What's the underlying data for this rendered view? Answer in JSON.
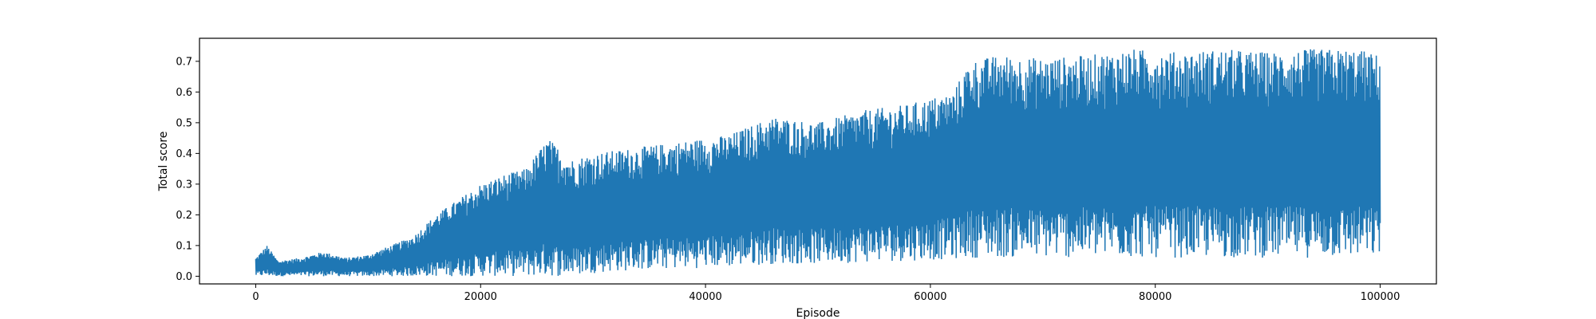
{
  "chart_data": {
    "type": "line",
    "title": "",
    "xlabel": "Episode",
    "ylabel": "Total score",
    "xlim": [
      -5000,
      105000
    ],
    "ylim": [
      -0.025,
      0.775
    ],
    "x_ticks": [
      0,
      20000,
      40000,
      60000,
      80000,
      100000
    ],
    "x_tick_labels": [
      "0",
      "20000",
      "40000",
      "60000",
      "80000",
      "100000"
    ],
    "y_ticks": [
      0.0,
      0.1,
      0.2,
      0.3,
      0.4,
      0.5,
      0.6,
      0.7
    ],
    "y_tick_labels": [
      "0.0",
      "0.1",
      "0.2",
      "0.3",
      "0.4",
      "0.5",
      "0.6",
      "0.7"
    ],
    "grid": false,
    "series": [
      {
        "color": "#1f77b4",
        "x_range": [
          0,
          100000
        ],
        "envelope_x": [
          0,
          1000,
          2000,
          4000,
          6000,
          8000,
          10000,
          12000,
          14000,
          16000,
          18000,
          20000,
          22000,
          24000,
          26000,
          28000,
          30000,
          34000,
          38000,
          42000,
          46000,
          50000,
          54000,
          58000,
          62000,
          63500,
          66000,
          70000,
          74000,
          78000,
          82000,
          86000,
          90000,
          94000,
          98000,
          100000
        ],
        "envelope_upper": [
          0.06,
          0.1,
          0.05,
          0.06,
          0.08,
          0.06,
          0.07,
          0.1,
          0.13,
          0.2,
          0.25,
          0.3,
          0.33,
          0.35,
          0.45,
          0.38,
          0.4,
          0.42,
          0.44,
          0.46,
          0.52,
          0.5,
          0.54,
          0.56,
          0.6,
          0.7,
          0.72,
          0.71,
          0.72,
          0.74,
          0.73,
          0.74,
          0.73,
          0.74,
          0.74,
          0.72
        ],
        "envelope_lower": [
          0.0,
          0.0,
          0.0,
          0.0,
          0.0,
          0.0,
          0.0,
          0.0,
          0.0,
          0.0,
          0.0,
          0.0,
          0.0,
          0.0,
          0.0,
          0.0,
          0.01,
          0.02,
          0.025,
          0.03,
          0.04,
          0.04,
          0.045,
          0.05,
          0.055,
          0.06,
          0.06,
          0.06,
          0.06,
          0.06,
          0.06,
          0.06,
          0.06,
          0.06,
          0.06,
          0.06
        ]
      }
    ]
  }
}
